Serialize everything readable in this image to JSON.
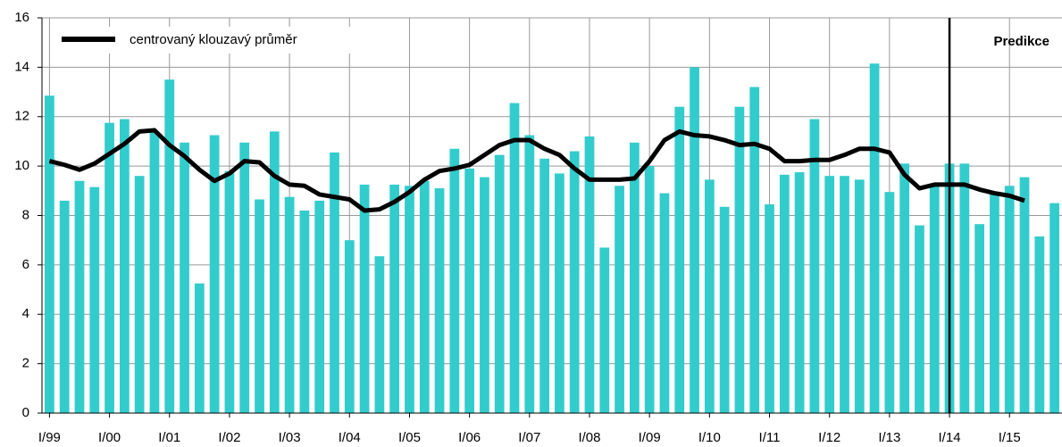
{
  "chart_data": {
    "type": "bar",
    "categories": [
      "I/99",
      null,
      null,
      null,
      "I/00",
      null,
      null,
      null,
      "I/01",
      null,
      null,
      null,
      "I/02",
      null,
      null,
      null,
      "I/03",
      null,
      null,
      null,
      "I/04",
      null,
      null,
      null,
      "I/05",
      null,
      null,
      null,
      "I/06",
      null,
      null,
      null,
      "I/07",
      null,
      null,
      null,
      "I/08",
      null,
      null,
      null,
      "I/09",
      null,
      null,
      null,
      "I/10",
      null,
      null,
      null,
      "I/11",
      null,
      null,
      null,
      "I/12",
      null,
      null,
      null,
      "I/13",
      null,
      null,
      null,
      "I/14",
      null,
      null,
      null,
      "I/15",
      null,
      null,
      null
    ],
    "bars": {
      "color": "#33cccc",
      "values": [
        12.85,
        8.6,
        9.4,
        9.15,
        11.75,
        11.9,
        9.6,
        11.4,
        13.5,
        10.95,
        5.25,
        11.25,
        9.8,
        10.95,
        8.65,
        11.4,
        8.75,
        8.2,
        8.6,
        10.55,
        7.0,
        9.25,
        6.35,
        9.25,
        9.2,
        9.4,
        9.1,
        10.7,
        9.9,
        9.55,
        10.45,
        12.55,
        11.25,
        10.3,
        9.7,
        10.6,
        11.2,
        6.7,
        9.2,
        10.95,
        10.0,
        8.9,
        12.4,
        14.0,
        9.45,
        8.35,
        12.4,
        13.2,
        8.45,
        9.65,
        9.75,
        11.9,
        9.6,
        9.6,
        9.45,
        14.15,
        8.95,
        10.1,
        7.6,
        9.2,
        10.1,
        10.1,
        7.65,
        8.9,
        9.2,
        9.55,
        7.15,
        8.5
      ]
    },
    "line": {
      "name": "centrovaný klouzavý průměr",
      "color": "#000000",
      "values": [
        10.2,
        10.05,
        9.85,
        10.1,
        10.5,
        10.9,
        11.4,
        11.45,
        10.85,
        10.4,
        9.85,
        9.4,
        9.7,
        10.2,
        10.15,
        9.6,
        9.25,
        9.2,
        8.85,
        8.75,
        8.65,
        8.2,
        8.25,
        8.55,
        8.95,
        9.45,
        9.8,
        9.9,
        10.05,
        10.45,
        10.85,
        11.05,
        11.05,
        10.7,
        10.45,
        9.9,
        9.45,
        9.45,
        9.45,
        9.5,
        10.2,
        11.05,
        11.4,
        11.25,
        11.2,
        11.05,
        10.85,
        10.9,
        10.7,
        10.2,
        10.2,
        10.25,
        10.25,
        10.45,
        10.7,
        10.7,
        10.55,
        9.65,
        9.1,
        9.25,
        9.25,
        9.25,
        9.05,
        8.9,
        8.8,
        8.6,
        null,
        null
      ]
    },
    "annotations": [
      {
        "text": "Predikce",
        "category": "I/14"
      }
    ],
    "ylim": [
      0,
      16
    ],
    "yticks": [
      0,
      2,
      4,
      6,
      8,
      10,
      12,
      14,
      16
    ],
    "grid": true,
    "legend": "top-left"
  }
}
